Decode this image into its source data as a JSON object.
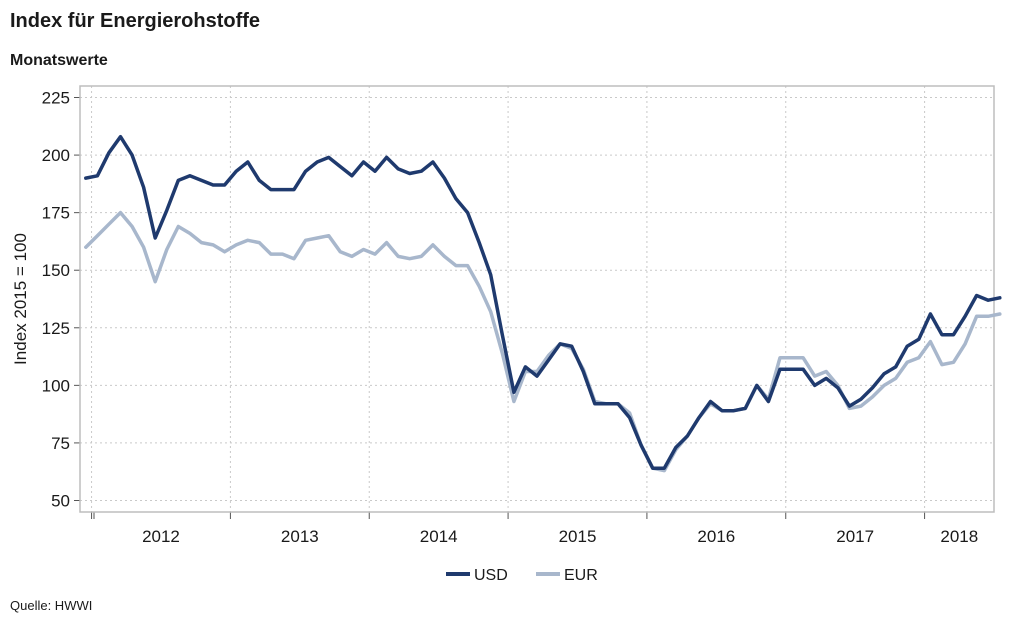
{
  "header": {
    "title": "Index für Energierohstoffe",
    "subtitle": "Monatswerte"
  },
  "footer": {
    "source": "Quelle: HWWI"
  },
  "chart_data": {
    "type": "line",
    "title": "Index für Energierohstoffe",
    "subtitle": "Monatswerte",
    "ylabel": "Index 2015 = 100",
    "xlabel": "",
    "ylim": [
      45,
      230
    ],
    "yticks": [
      50,
      75,
      100,
      125,
      150,
      175,
      200,
      225
    ],
    "x_start": "2011-12",
    "x_end": "2018-06",
    "xticks": [
      "2012",
      "2013",
      "2014",
      "2015",
      "2016",
      "2017",
      "2018"
    ],
    "grid": true,
    "legend_position": "bottom",
    "series": [
      {
        "name": "USD",
        "color": "#1f3a6e",
        "values": [
          190,
          191,
          201,
          208,
          200,
          186,
          164,
          176,
          189,
          191,
          189,
          187,
          187,
          193,
          197,
          189,
          185,
          185,
          185,
          193,
          197,
          199,
          195,
          191,
          197,
          193,
          199,
          194,
          192,
          193,
          197,
          190,
          181,
          175,
          162,
          148,
          122,
          97,
          108,
          104,
          111,
          118,
          117,
          106,
          92,
          92,
          92,
          86,
          74,
          64,
          64,
          73,
          78,
          86,
          93,
          89,
          89,
          90,
          100,
          93,
          107,
          107,
          107,
          100,
          103,
          99,
          91,
          94,
          99,
          105,
          108,
          117,
          120,
          131,
          122,
          122,
          130,
          139,
          137,
          138
        ]
      },
      {
        "name": "EUR",
        "color": "#a8b7cc",
        "values": [
          160,
          165,
          170,
          175,
          169,
          160,
          145,
          159,
          169,
          166,
          162,
          161,
          158,
          161,
          163,
          162,
          157,
          157,
          155,
          163,
          164,
          165,
          158,
          156,
          159,
          157,
          162,
          156,
          155,
          156,
          161,
          156,
          152,
          152,
          143,
          132,
          114,
          93,
          106,
          106,
          113,
          118,
          116,
          107,
          93,
          92,
          92,
          88,
          74,
          64,
          63,
          72,
          78,
          86,
          92,
          89,
          89,
          90,
          100,
          94,
          112,
          112,
          112,
          104,
          106,
          100,
          90,
          91,
          95,
          100,
          103,
          110,
          112,
          119,
          109,
          110,
          118,
          130,
          130,
          131
        ]
      }
    ]
  }
}
